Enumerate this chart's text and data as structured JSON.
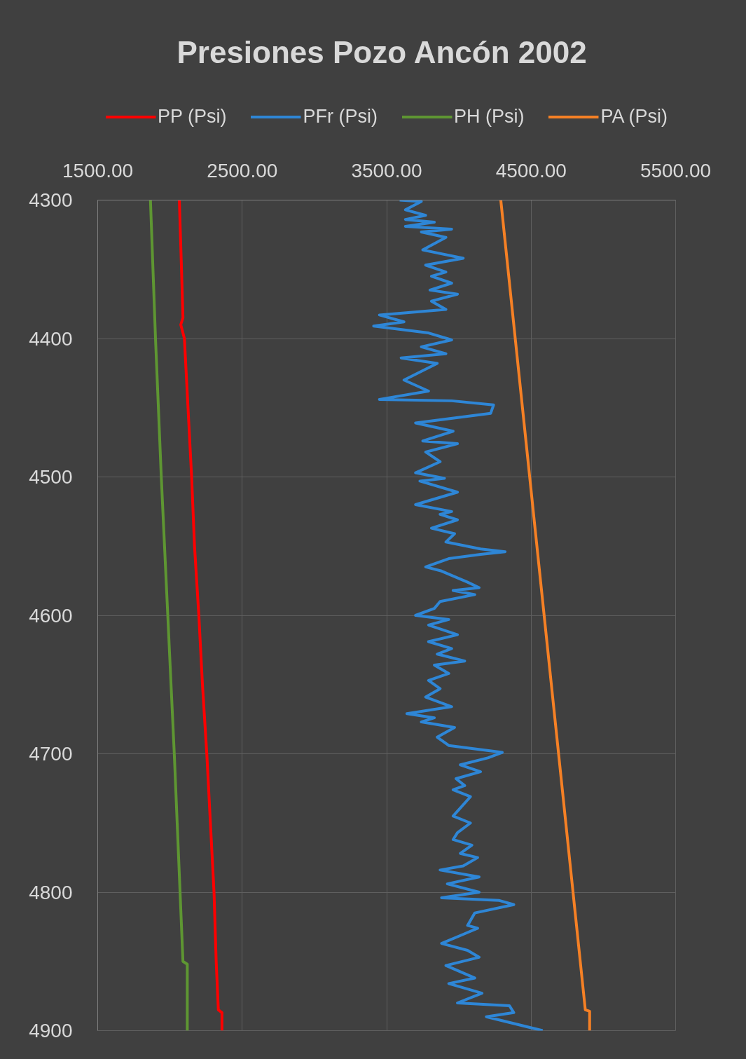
{
  "chart_data": {
    "type": "line",
    "title": "Presiones Pozo Ancón  2002",
    "xlim": [
      1500,
      5500
    ],
    "xticks": [
      {
        "value": 1500,
        "label": "1500.00"
      },
      {
        "value": 2500,
        "label": "2500.00"
      },
      {
        "value": 3500,
        "label": "3500.00"
      },
      {
        "value": 4500,
        "label": "4500.00"
      },
      {
        "value": 5500,
        "label": "5500.00"
      }
    ],
    "ylim": [
      4900,
      4300
    ],
    "yticks": [
      4300,
      4400,
      4500,
      4600,
      4700,
      4800,
      4900
    ],
    "grid": true,
    "legend": "top",
    "series": [
      {
        "name": "PP (Psi)",
        "color": "#ff0000",
        "x": [
          2065,
          2080,
          2090,
          2075,
          2100,
          2125,
          2150,
          2170,
          2200,
          2225,
          2255,
          2280,
          2305,
          2320,
          2335,
          2360,
          2360
        ],
        "values": [
          4300,
          4350,
          4385,
          4390,
          4400,
          4450,
          4500,
          4550,
          4600,
          4650,
          4700,
          4750,
          4800,
          4850,
          4885,
          4887,
          4900
        ]
      },
      {
        "name": "PFr (Psi)",
        "color": "#2e86d6",
        "x": [
          3590,
          3740,
          3630,
          3770,
          3630,
          3830,
          3630,
          3950,
          3740,
          3910,
          3750,
          4030,
          3770,
          3910,
          3810,
          3950,
          3800,
          3990,
          3810,
          3910,
          3450,
          3620,
          3410,
          3790,
          3950,
          3740,
          3910,
          3600,
          3850,
          3620,
          3790,
          3450,
          3950,
          4240,
          4220,
          3700,
          3960,
          3750,
          3990,
          3770,
          3870,
          3700,
          3900,
          3730,
          3990,
          3700,
          3950,
          3870,
          3990,
          3810,
          3970,
          3910,
          4150,
          4320,
          4150,
          3930,
          3770,
          3880,
          4060,
          4140,
          3960,
          4110,
          3870,
          3830,
          3700,
          3930,
          3790,
          3990,
          3790,
          3950,
          3850,
          4040,
          3830,
          3930,
          3790,
          3870,
          3770,
          3950,
          3640,
          3830,
          3740,
          3970,
          3850,
          3930,
          4300,
          4200,
          4010,
          4150,
          3980,
          4040,
          3960,
          4080,
          3960,
          4080,
          3990,
          3960,
          4090,
          4010,
          4130,
          4030,
          3870,
          4140,
          3920,
          4140,
          3880,
          4280,
          4380,
          4110,
          4060,
          4130,
          4040,
          3880,
          4060,
          4140,
          3910,
          4110,
          3930,
          4160,
          3990,
          4350,
          4380,
          4190,
          4580
        ],
        "values": [
          4300,
          4301,
          4307,
          4311,
          4314,
          4316,
          4319,
          4321,
          4323,
          4327,
          4336,
          4342,
          4347,
          4352,
          4355,
          4360,
          4365,
          4368,
          4373,
          4379,
          4383,
          4388,
          4391,
          4396,
          4401,
          4406,
          4411,
          4414,
          4418,
          4430,
          4438,
          4444,
          4445,
          4448,
          4454,
          4461,
          4467,
          4474,
          4476,
          4482,
          4489,
          4497,
          4501,
          4503,
          4511,
          4520,
          4525,
          4527,
          4531,
          4537,
          4541,
          4547,
          4552,
          4554,
          4556,
          4559,
          4565,
          4568,
          4576,
          4580,
          4582,
          4585,
          4590,
          4595,
          4600,
          4603,
          4607,
          4614,
          4619,
          4624,
          4628,
          4633,
          4636,
          4642,
          4647,
          4653,
          4659,
          4666,
          4671,
          4674,
          4677,
          4681,
          4688,
          4694,
          4699,
          4703,
          4708,
          4713,
          4718,
          4723,
          4726,
          4731,
          4745,
          4750,
          4757,
          4762,
          4766,
          4772,
          4775,
          4781,
          4784,
          4789,
          4794,
          4800,
          4804,
          4806,
          4809,
          4815,
          4824,
          4826,
          4830,
          4837,
          4842,
          4847,
          4853,
          4862,
          4866,
          4873,
          4880,
          4882,
          4887,
          4890,
          4900
        ]
      },
      {
        "name": "PH (Psi)",
        "color": "#5e9632",
        "x": [
          1865,
          1900,
          1940,
          1985,
          2030,
          2070,
          2090,
          2120,
          2120
        ],
        "values": [
          4300,
          4400,
          4500,
          4600,
          4700,
          4800,
          4850,
          4852,
          4900
        ]
      },
      {
        "name": "PA (Psi)",
        "color": "#f58025",
        "x": [
          4290,
          4390,
          4490,
          4590,
          4690,
          4790,
          4875,
          4905,
          4905
        ],
        "values": [
          4300,
          4400,
          4500,
          4600,
          4700,
          4800,
          4885,
          4886,
          4900
        ]
      }
    ]
  }
}
